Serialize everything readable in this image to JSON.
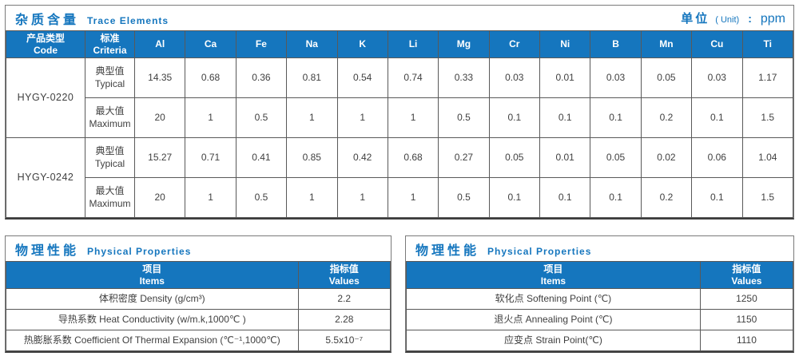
{
  "colors": {
    "accent_blue": "#1576BE",
    "header_text": "#FFFFFF",
    "body_text": "#3F3F3F",
    "inner_border": "#595959",
    "outer_border": "#7A7A7A"
  },
  "trace_section": {
    "title_cn": "杂质含量",
    "title_en": "Trace Elements",
    "unit": {
      "cn": "单位",
      "en": "( Unit)",
      "sep": ":",
      "value": "ppm"
    },
    "header_cols": [
      {
        "cn": "产品类型",
        "en": "Code"
      },
      {
        "cn": "标准",
        "en": "Criteria"
      }
    ],
    "elements": [
      "Al",
      "Ca",
      "Fe",
      "Na",
      "K",
      "Li",
      "Mg",
      "Cr",
      "Ni",
      "B",
      "Mn",
      "Cu",
      "Ti"
    ],
    "groups": [
      {
        "code": "HYGY-0220",
        "rows": [
          {
            "label_cn": "典型值",
            "label_en": "Typical",
            "values": [
              "14.35",
              "0.68",
              "0.36",
              "0.81",
              "0.54",
              "0.74",
              "0.33",
              "0.03",
              "0.01",
              "0.03",
              "0.05",
              "0.03",
              "1.17"
            ]
          },
          {
            "label_cn": "最大值",
            "label_en": "Maximum",
            "values": [
              "20",
              "1",
              "0.5",
              "1",
              "1",
              "1",
              "0.5",
              "0.1",
              "0.1",
              "0.1",
              "0.2",
              "0.1",
              "1.5"
            ]
          }
        ]
      },
      {
        "code": "HYGY-0242",
        "rows": [
          {
            "label_cn": "典型值",
            "label_en": "Typical",
            "values": [
              "15.27",
              "0.71",
              "0.41",
              "0.85",
              "0.42",
              "0.68",
              "0.27",
              "0.05",
              "0.01",
              "0.05",
              "0.02",
              "0.06",
              "1.04"
            ]
          },
          {
            "label_cn": "最大值",
            "label_en": "Maximum",
            "values": [
              "20",
              "1",
              "0.5",
              "1",
              "1",
              "1",
              "0.5",
              "0.1",
              "0.1",
              "0.1",
              "0.2",
              "0.1",
              "1.5"
            ]
          }
        ]
      }
    ]
  },
  "physical_sections": [
    {
      "title_cn": "物理性能",
      "title_en": "Physical Properties",
      "cols": {
        "items_cn": "项目",
        "items_en": "Items",
        "values_cn": "指标值",
        "values_en": "Values"
      },
      "rows": [
        {
          "item": "体积密度 Density (g/cm³)",
          "value": "2.2"
        },
        {
          "item": "导热系数 Heat Conductivity (w/m.k,1000℃ )",
          "value": "2.28"
        },
        {
          "item": "热膨胀系数 Coefficient Of Thermal Expansion (℃⁻¹,1000℃)",
          "value": "5.5x10⁻⁷"
        }
      ]
    },
    {
      "title_cn": "物理性能",
      "title_en": "Physical Properties",
      "cols": {
        "items_cn": "项目",
        "items_en": "Items",
        "values_cn": "指标值",
        "values_en": "Values"
      },
      "rows": [
        {
          "item": "软化点 Softening Point (℃)",
          "value": "1250"
        },
        {
          "item": "退火点 Annealing Point (℃)",
          "value": "1150"
        },
        {
          "item": "应变点 Strain Point(℃)",
          "value": "1110"
        }
      ]
    }
  ]
}
